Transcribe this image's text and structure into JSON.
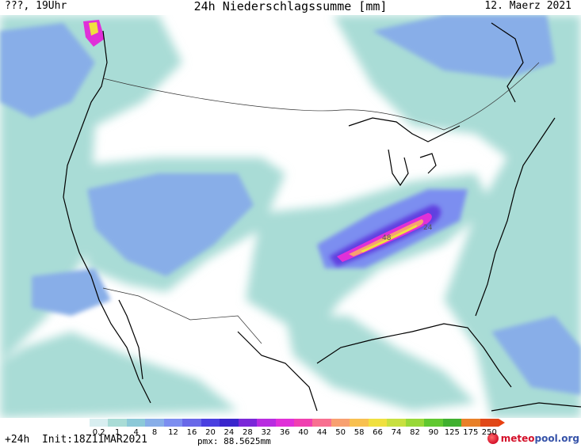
{
  "header": {
    "left": "???, 19Uhr",
    "title": "24h Niederschlagssumme [mm]",
    "date": "12. Maerz 2021"
  },
  "map": {
    "labels": {
      "max_a": "48",
      "max_b": "24"
    }
  },
  "colorbar": {
    "ticks": [
      "0.2",
      "1",
      "4",
      "8",
      "12",
      "16",
      "20",
      "24",
      "28",
      "32",
      "36",
      "40",
      "44",
      "50",
      "58",
      "66",
      "74",
      "82",
      "90",
      "125",
      "175",
      "250"
    ],
    "colors": [
      "#d8eef0",
      "#a9dcd6",
      "#8cc9d8",
      "#88aee8",
      "#7c8ef0",
      "#6868e8",
      "#4a40e0",
      "#3a26cc",
      "#7a28d8",
      "#b82ce0",
      "#e030d8",
      "#f040b0",
      "#f87090",
      "#f8a070",
      "#f8c050",
      "#f0e040",
      "#c8e040",
      "#98d838",
      "#60c830",
      "#40b030",
      "#e88028",
      "#e04818"
    ],
    "arrow_color": "#e84010"
  },
  "footer": {
    "left": "+24h  Init:18Z11MAR2021",
    "middle": "pmx: 88.5625mm",
    "logo_a": "meteo",
    "logo_b": "pool.org"
  }
}
